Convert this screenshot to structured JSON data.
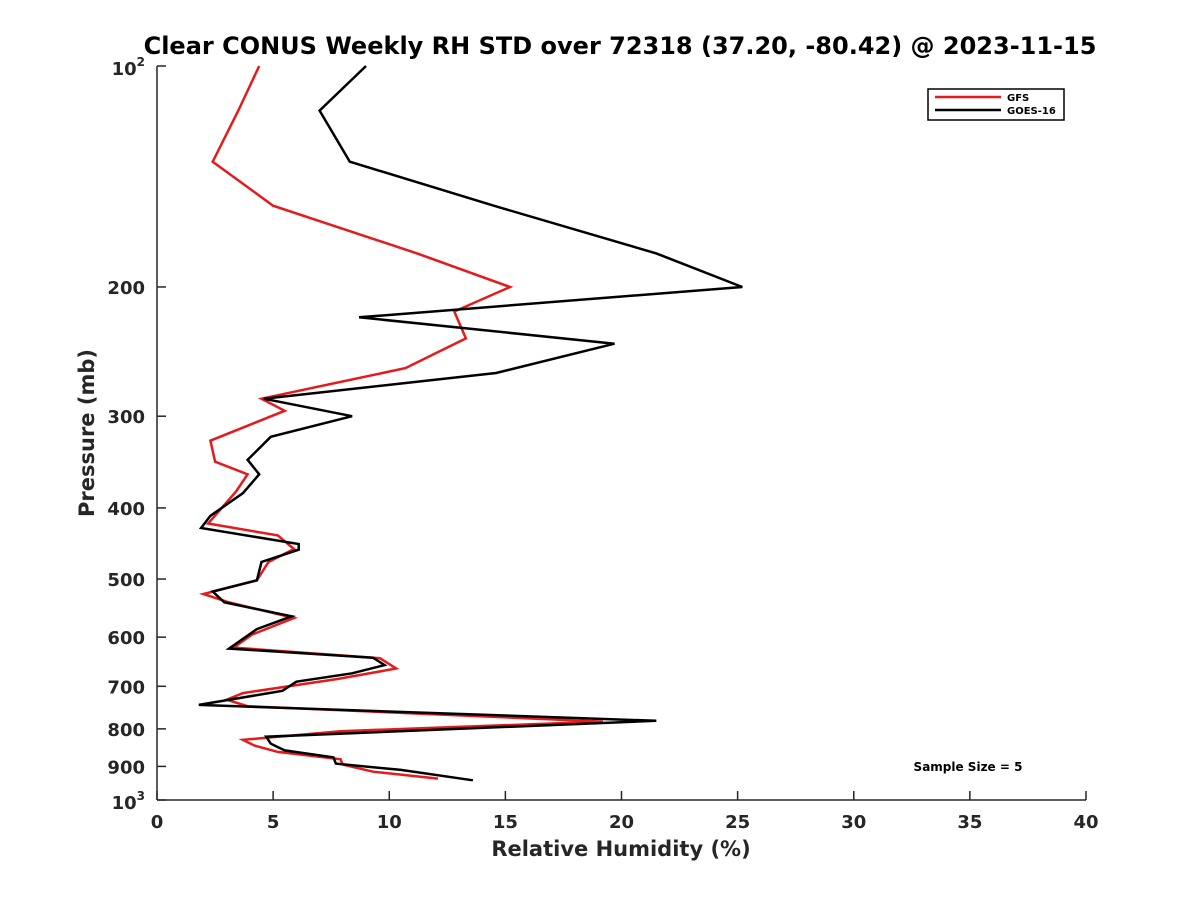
{
  "chart_data": {
    "type": "line",
    "title": "Clear CONUS Weekly RH STD over 72318 (37.20, -80.42) @ 2023-11-15",
    "xlabel": "Relative Humidity (%)",
    "ylabel": "Pressure (mb)",
    "xlim": [
      0,
      40
    ],
    "ylim": [
      100,
      1000
    ],
    "y_scale": "log",
    "y_reversed": true,
    "x_ticks": [
      0,
      5,
      10,
      15,
      20,
      25,
      30,
      35,
      40
    ],
    "x_tick_labels": [
      "0",
      "5",
      "10",
      "15",
      "20",
      "25",
      "30",
      "35",
      "40"
    ],
    "y_ticks": [
      {
        "value": 100,
        "base": "10",
        "exp": "2"
      },
      {
        "value": 200,
        "label": "200"
      },
      {
        "value": 300,
        "label": "300"
      },
      {
        "value": 400,
        "label": "400"
      },
      {
        "value": 500,
        "label": "500"
      },
      {
        "value": 600,
        "label": "600"
      },
      {
        "value": 700,
        "label": "700"
      },
      {
        "value": 800,
        "label": "800"
      },
      {
        "value": 900,
        "label": "900"
      },
      {
        "value": 1000,
        "base": "10",
        "exp": "3"
      }
    ],
    "grid": false,
    "legend_position": "top-right",
    "annotation": "Sample Size = 5",
    "series": [
      {
        "name": "GFS",
        "color": "#e41a1c",
        "points": [
          [
            4.4,
            100
          ],
          [
            3.5,
            115
          ],
          [
            2.4,
            135
          ],
          [
            5.0,
            155
          ],
          [
            11.2,
            180
          ],
          [
            15.2,
            200
          ],
          [
            12.8,
            216
          ],
          [
            13.3,
            235
          ],
          [
            10.7,
            258
          ],
          [
            4.5,
            284
          ],
          [
            5.5,
            295
          ],
          [
            2.3,
            324
          ],
          [
            2.5,
            346
          ],
          [
            3.9,
            360
          ],
          [
            3.4,
            380
          ],
          [
            2.2,
            420
          ],
          [
            5.2,
            436
          ],
          [
            5.9,
            455
          ],
          [
            4.8,
            474
          ],
          [
            4.3,
            502
          ],
          [
            2.0,
            524
          ],
          [
            3.1,
            538
          ],
          [
            5.9,
            565
          ],
          [
            4.1,
            595
          ],
          [
            3.3,
            620
          ],
          [
            9.6,
            641
          ],
          [
            10.3,
            662
          ],
          [
            7.8,
            684
          ],
          [
            3.7,
            715
          ],
          [
            3.0,
            730
          ],
          [
            3.9,
            745
          ],
          [
            19.2,
            782
          ],
          [
            7.9,
            806
          ],
          [
            3.7,
            828
          ],
          [
            4.2,
            843
          ],
          [
            5.2,
            860
          ],
          [
            7.9,
            880
          ],
          [
            8.0,
            895
          ],
          [
            9.3,
            915
          ],
          [
            12.1,
            935
          ]
        ]
      },
      {
        "name": "GOES-16",
        "color": "#000000",
        "points": [
          [
            9.0,
            100
          ],
          [
            7.0,
            115
          ],
          [
            8.3,
            135
          ],
          [
            14.5,
            155
          ],
          [
            21.5,
            180
          ],
          [
            25.2,
            200
          ],
          [
            8.7,
            220
          ],
          [
            19.7,
            239
          ],
          [
            14.6,
            262
          ],
          [
            4.6,
            284
          ],
          [
            8.4,
            300
          ],
          [
            4.9,
            320
          ],
          [
            3.9,
            344
          ],
          [
            4.4,
            360
          ],
          [
            3.7,
            382
          ],
          [
            2.3,
            410
          ],
          [
            1.9,
            426
          ],
          [
            6.1,
            448
          ],
          [
            6.1,
            456
          ],
          [
            4.5,
            474
          ],
          [
            4.3,
            502
          ],
          [
            2.4,
            520
          ],
          [
            2.9,
            538
          ],
          [
            5.8,
            562
          ],
          [
            4.3,
            585
          ],
          [
            3.1,
            622
          ],
          [
            9.3,
            640
          ],
          [
            9.8,
            655
          ],
          [
            8.4,
            672
          ],
          [
            6.0,
            690
          ],
          [
            5.4,
            710
          ],
          [
            1.8,
            742
          ],
          [
            21.5,
            780
          ],
          [
            4.7,
            820
          ],
          [
            4.9,
            838
          ],
          [
            5.5,
            856
          ],
          [
            7.6,
            875
          ],
          [
            7.7,
            892
          ],
          [
            10.5,
            910
          ],
          [
            13.6,
            940
          ]
        ]
      }
    ]
  }
}
